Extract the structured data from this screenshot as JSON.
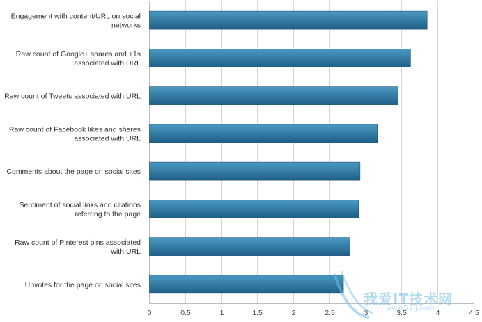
{
  "chart_data": {
    "type": "bar",
    "orientation": "horizontal",
    "categories": [
      [
        "Engagement with content/URL on social",
        "networks"
      ],
      [
        "Raw count of Google+ shares and +1s",
        "associated with URL"
      ],
      [
        "Raw count of Tweets associated with URL"
      ],
      [
        "Raw count of Facebook likes and shares",
        "associated with URL"
      ],
      [
        "Comments about the page on social sites"
      ],
      [
        "Sentiment of social links and citations",
        "referring to the page"
      ],
      [
        "Raw count of Pinterest pins associated",
        "with URL"
      ],
      [
        "Upvotes for the page on social sites"
      ]
    ],
    "values": [
      3.85,
      3.62,
      3.45,
      3.16,
      2.92,
      2.9,
      2.78,
      2.69
    ],
    "xticks": [
      "0",
      "0.5",
      "1",
      "1.5",
      "2",
      "2.5",
      "3",
      "3.5",
      "4",
      "4.5"
    ],
    "xlim": [
      0,
      4.5
    ],
    "grid": true,
    "colors": {
      "bar_top": "#4a9ac4",
      "bar_bottom": "#1f5f86",
      "bar_edge": "#1a5070"
    }
  },
  "watermark": {
    "text": "我爱IT技术网",
    "sub": "www.52ij.com"
  }
}
